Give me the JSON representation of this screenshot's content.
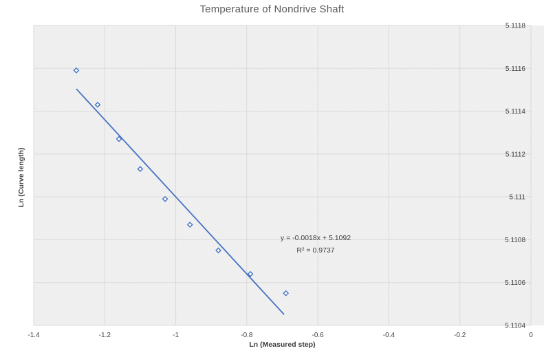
{
  "chart_data": {
    "type": "scatter",
    "title": "Temperature of Nondrive Shaft",
    "xlabel": "Ln (Measured step)",
    "ylabel": "Ln (Curve length)",
    "xlim": [
      -1.4,
      0
    ],
    "ylim": [
      5.1104,
      5.1118
    ],
    "x_ticks": [
      "-1.4",
      "-1.2",
      "-1",
      "-0.8",
      "-0.6",
      "-0.4",
      "-0.2",
      "0"
    ],
    "y_ticks": [
      "5.1118",
      "5.1116",
      "5.1114",
      "5.1112",
      "5.111",
      "5.1108",
      "5.1106",
      "5.1104"
    ],
    "grid": true,
    "legend": "none",
    "marker": "open-diamond",
    "points": [
      {
        "x": -1.28,
        "y": 5.11159
      },
      {
        "x": -1.22,
        "y": 5.11143
      },
      {
        "x": -1.16,
        "y": 5.11127
      },
      {
        "x": -1.1,
        "y": 5.11113
      },
      {
        "x": -1.03,
        "y": 5.11099
      },
      {
        "x": -0.96,
        "y": 5.11087
      },
      {
        "x": -0.88,
        "y": 5.11075
      },
      {
        "x": -0.79,
        "y": 5.11064
      },
      {
        "x": -0.69,
        "y": 5.11055
      }
    ],
    "trendline": {
      "kind": "linear",
      "slope": -0.0018,
      "intercept": 5.1092,
      "x_start": -1.28,
      "x_end": -0.695,
      "equation": "y = -0.0018x + 5.1092",
      "r2": 0.9737,
      "r2_label": "R² = 0.9737"
    }
  },
  "colors": {
    "series": "#4472c4",
    "gridline": "#d9d9d9",
    "plot_bg": "#f2f2f2",
    "plot_hatch": "#e7e7e7",
    "title_text": "#595959",
    "axis_text": "#404040"
  }
}
